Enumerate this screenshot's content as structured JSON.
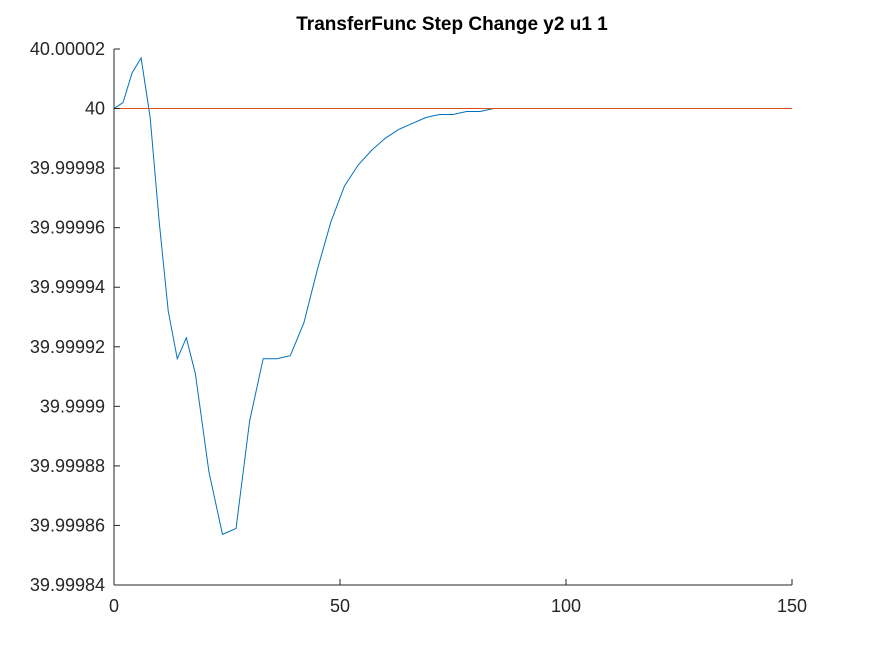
{
  "chart_data": {
    "type": "line",
    "title": "TransferFunc Step Change y2 u1 1",
    "xlabel": "",
    "ylabel": "",
    "xlim": [
      0,
      150
    ],
    "ylim": [
      39.99984,
      40.00002
    ],
    "x_ticks": [
      0,
      50,
      100,
      150
    ],
    "x_tick_labels": [
      "0",
      "50",
      "100",
      "150"
    ],
    "y_ticks": [
      39.99984,
      39.99986,
      39.99988,
      39.9999,
      39.99992,
      39.99994,
      39.99996,
      39.99998,
      40,
      40.00002
    ],
    "y_tick_labels": [
      "39.99984",
      "39.99986",
      "39.99988",
      "39.9999",
      "39.99992",
      "39.99994",
      "39.99996",
      "39.99998",
      "40",
      "40.00002"
    ],
    "grid": false,
    "series": [
      {
        "color": "#0072BD",
        "x": [
          0,
          2,
          4,
          6,
          8,
          10,
          12,
          14,
          16,
          18,
          21,
          24,
          27,
          30,
          33,
          36,
          39,
          42,
          45,
          48,
          51,
          54,
          57,
          60,
          63,
          66,
          69,
          72,
          75,
          78,
          81,
          84,
          87,
          90,
          95,
          100,
          110,
          120,
          130,
          140,
          150
        ],
        "values": [
          40,
          40.000002,
          40.000012,
          40.000017,
          39.999997,
          39.999962,
          39.999932,
          39.999916,
          39.999923,
          39.999911,
          39.999878,
          39.999857,
          39.999859,
          39.999895,
          39.999916,
          39.999916,
          39.999917,
          39.999928,
          39.999946,
          39.999962,
          39.999974,
          39.999981,
          39.999986,
          39.99999,
          39.999993,
          39.999995,
          39.999997,
          39.999998,
          39.999998,
          39.999999,
          39.999999,
          40,
          40,
          40,
          40,
          40,
          40,
          40,
          40,
          40,
          40
        ]
      },
      {
        "color": "#D95319",
        "x": [
          0,
          150
        ],
        "values": [
          40,
          40
        ]
      }
    ]
  }
}
